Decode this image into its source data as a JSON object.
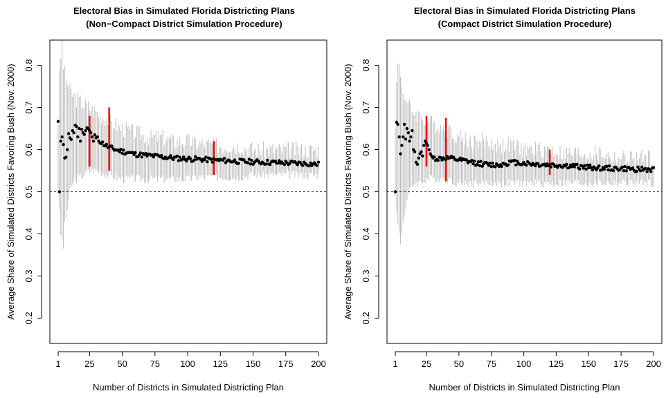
{
  "chart_data": [
    {
      "type": "scatter",
      "title": "Electoral Bias in Simulated Florida Districting Plans",
      "subtitle": "(Non−Compact District Simulation Procedure)",
      "xlabel": "Number of Districts in Simulated Districting Plan",
      "ylabel": "Average Share of Simulated Districts Favoring Bush (Nov. 2000)",
      "xlim": [
        1,
        200
      ],
      "ylim": [
        0.14,
        0.86
      ],
      "x_ticks": [
        "1",
        "25",
        "50",
        "75",
        "100",
        "125",
        "150",
        "175",
        "200"
      ],
      "y_ticks": [
        "0.2",
        "0.3",
        "0.4",
        "0.5",
        "0.6",
        "0.7",
        "0.8"
      ],
      "reference_line": 0.5,
      "series": [
        {
          "kind": "points",
          "x": [
            1,
            2,
            3,
            4,
            5,
            6,
            7,
            8,
            9,
            10,
            11,
            12,
            13,
            14,
            15,
            16,
            17,
            18,
            19,
            20,
            21,
            22,
            23,
            24,
            25,
            26,
            27,
            28,
            29,
            30,
            35,
            40,
            45,
            50,
            60,
            70,
            80,
            90,
            100,
            110,
            120,
            130,
            140,
            150,
            160,
            170,
            180,
            190,
            200
          ],
          "y": [
            0.667,
            0.5,
            0.62,
            0.63,
            0.612,
            0.58,
            0.582,
            0.6,
            0.638,
            0.628,
            0.624,
            0.645,
            0.64,
            0.658,
            0.655,
            0.63,
            0.65,
            0.62,
            0.648,
            0.64,
            0.636,
            0.645,
            0.652,
            0.65,
            0.645,
            0.64,
            0.63,
            0.62,
            0.635,
            0.628,
            0.615,
            0.605,
            0.6,
            0.596,
            0.589,
            0.586,
            0.583,
            0.58,
            0.578,
            0.577,
            0.575,
            0.574,
            0.572,
            0.571,
            0.57,
            0.569,
            0.568,
            0.567,
            0.565
          ]
        },
        {
          "kind": "interval",
          "x": [
            1,
            2,
            3,
            4,
            5,
            6,
            7,
            8,
            9,
            10,
            12,
            15,
            20,
            25,
            30,
            40,
            50,
            60,
            70,
            80,
            90,
            100,
            110,
            120,
            130,
            140,
            150,
            160,
            170,
            180,
            190,
            200
          ],
          "low": [
            0.5,
            0.45,
            0.4,
            0.38,
            0.37,
            0.42,
            0.44,
            0.46,
            0.48,
            0.5,
            0.52,
            0.53,
            0.54,
            0.55,
            0.55,
            0.54,
            0.53,
            0.53,
            0.53,
            0.53,
            0.53,
            0.53,
            0.535,
            0.535,
            0.535,
            0.535,
            0.54,
            0.54,
            0.54,
            0.54,
            0.54,
            0.54
          ],
          "high": [
            0.67,
            0.77,
            0.82,
            0.86,
            0.8,
            0.78,
            0.77,
            0.76,
            0.75,
            0.74,
            0.73,
            0.72,
            0.71,
            0.7,
            0.69,
            0.67,
            0.65,
            0.64,
            0.63,
            0.63,
            0.62,
            0.62,
            0.615,
            0.61,
            0.61,
            0.61,
            0.6,
            0.6,
            0.6,
            0.6,
            0.6,
            0.6
          ]
        },
        {
          "kind": "highlight",
          "color": "#ff0000",
          "x": [
            25,
            40,
            120
          ],
          "low": [
            0.56,
            0.55,
            0.54
          ],
          "high": [
            0.68,
            0.7,
            0.62
          ]
        }
      ]
    },
    {
      "type": "scatter",
      "title": "Electoral Bias in Simulated Florida Districting Plans",
      "subtitle": "(Compact District Simulation Procedure)",
      "xlabel": "Number of Districts in Simulated Districting Plan",
      "ylabel": "Average Share of Simulated Districts Favoring Bush (Nov. 2000)",
      "xlim": [
        1,
        200
      ],
      "ylim": [
        0.14,
        0.86
      ],
      "x_ticks": [
        "1",
        "25",
        "50",
        "75",
        "100",
        "125",
        "150",
        "175",
        "200"
      ],
      "y_ticks": [
        "0.2",
        "0.3",
        "0.4",
        "0.5",
        "0.6",
        "0.7",
        "0.8"
      ],
      "reference_line": 0.5,
      "series": [
        {
          "kind": "points",
          "x": [
            1,
            2,
            3,
            4,
            5,
            6,
            7,
            8,
            9,
            10,
            11,
            12,
            13,
            14,
            15,
            16,
            17,
            18,
            19,
            20,
            21,
            22,
            23,
            24,
            25,
            26,
            27,
            28,
            29,
            30,
            35,
            40,
            45,
            50,
            60,
            70,
            80,
            90,
            100,
            110,
            120,
            130,
            140,
            150,
            160,
            170,
            180,
            190,
            200
          ],
          "y": [
            0.5,
            0.665,
            0.66,
            0.63,
            0.59,
            0.61,
            0.63,
            0.66,
            0.625,
            0.65,
            0.64,
            0.62,
            0.63,
            0.645,
            0.6,
            0.595,
            0.57,
            0.565,
            0.58,
            0.59,
            0.595,
            0.585,
            0.61,
            0.62,
            0.615,
            0.61,
            0.6,
            0.59,
            0.585,
            0.58,
            0.578,
            0.58,
            0.578,
            0.575,
            0.57,
            0.565,
            0.563,
            0.57,
            0.568,
            0.565,
            0.563,
            0.562,
            0.56,
            0.558,
            0.556,
            0.555,
            0.554,
            0.553,
            0.552
          ]
        },
        {
          "kind": "interval",
          "x": [
            1,
            2,
            3,
            4,
            5,
            6,
            7,
            8,
            9,
            10,
            12,
            15,
            20,
            25,
            30,
            40,
            50,
            60,
            70,
            80,
            90,
            100,
            110,
            120,
            130,
            140,
            150,
            160,
            170,
            180,
            190,
            200
          ],
          "low": [
            0.5,
            0.45,
            0.42,
            0.4,
            0.38,
            0.4,
            0.43,
            0.45,
            0.46,
            0.48,
            0.5,
            0.52,
            0.52,
            0.53,
            0.53,
            0.53,
            0.52,
            0.52,
            0.52,
            0.52,
            0.52,
            0.52,
            0.52,
            0.52,
            0.52,
            0.52,
            0.52,
            0.52,
            0.52,
            0.52,
            0.52,
            0.52
          ],
          "high": [
            0.67,
            0.75,
            0.8,
            0.8,
            0.78,
            0.75,
            0.74,
            0.73,
            0.72,
            0.71,
            0.7,
            0.69,
            0.68,
            0.67,
            0.66,
            0.65,
            0.63,
            0.62,
            0.62,
            0.61,
            0.61,
            0.6,
            0.6,
            0.6,
            0.59,
            0.59,
            0.59,
            0.59,
            0.58,
            0.58,
            0.58,
            0.58
          ]
        },
        {
          "kind": "highlight",
          "color": "#ff0000",
          "x": [
            25,
            40,
            120
          ],
          "low": [
            0.56,
            0.525,
            0.54
          ],
          "high": [
            0.68,
            0.675,
            0.6
          ]
        }
      ]
    }
  ]
}
